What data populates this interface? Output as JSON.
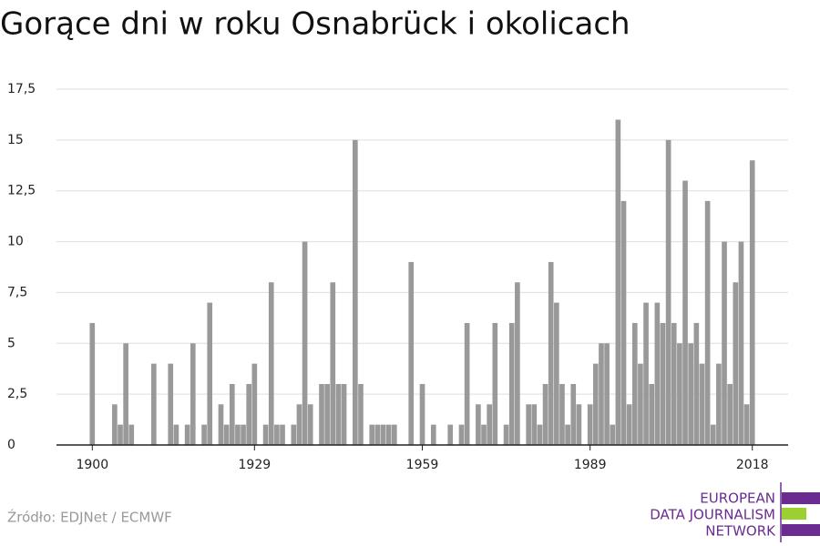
{
  "chart_data": {
    "type": "bar",
    "title": "Gorące dni w roku Osnabrück i okolicach",
    "x": [
      1900,
      1901,
      1902,
      1903,
      1904,
      1905,
      1906,
      1907,
      1908,
      1909,
      1910,
      1911,
      1912,
      1913,
      1914,
      1915,
      1916,
      1917,
      1918,
      1919,
      1920,
      1921,
      1922,
      1923,
      1924,
      1925,
      1926,
      1927,
      1928,
      1929,
      1930,
      1931,
      1932,
      1933,
      1934,
      1935,
      1936,
      1937,
      1938,
      1939,
      1940,
      1941,
      1942,
      1943,
      1944,
      1945,
      1946,
      1947,
      1948,
      1949,
      1950,
      1951,
      1952,
      1953,
      1954,
      1955,
      1956,
      1957,
      1958,
      1959,
      1960,
      1961,
      1962,
      1963,
      1964,
      1965,
      1966,
      1967,
      1968,
      1969,
      1970,
      1971,
      1972,
      1973,
      1974,
      1975,
      1976,
      1977,
      1978,
      1979,
      1980,
      1981,
      1982,
      1983,
      1984,
      1985,
      1986,
      1987,
      1988,
      1989,
      1990,
      1991,
      1992,
      1993,
      1994,
      1995,
      1996,
      1997,
      1998,
      1999,
      2000,
      2001,
      2002,
      2003,
      2004,
      2005,
      2006,
      2007,
      2008,
      2009,
      2010,
      2011,
      2012,
      2013,
      2014,
      2015,
      2016,
      2017,
      2018
    ],
    "values": [
      6,
      0,
      0,
      0,
      2,
      1,
      5,
      1,
      0,
      0,
      0,
      4,
      0,
      0,
      4,
      1,
      0,
      1,
      5,
      0,
      1,
      7,
      0,
      2,
      1,
      3,
      1,
      1,
      3,
      4,
      0,
      1,
      8,
      1,
      1,
      0,
      1,
      2,
      10,
      2,
      0,
      3,
      3,
      8,
      3,
      3,
      0,
      15,
      3,
      0,
      1,
      1,
      1,
      1,
      1,
      0,
      0,
      9,
      0,
      3,
      0,
      1,
      0,
      0,
      1,
      0,
      1,
      6,
      0,
      2,
      1,
      2,
      6,
      0,
      1,
      6,
      8,
      0,
      2,
      2,
      1,
      3,
      9,
      7,
      3,
      1,
      3,
      2,
      0,
      2,
      4,
      5,
      5,
      1,
      16,
      12,
      2,
      6,
      4,
      7,
      3,
      7,
      6,
      15,
      6,
      5,
      13,
      5,
      6,
      4,
      12,
      1,
      4,
      10,
      3,
      8,
      10,
      2,
      14
    ],
    "color": "#999999",
    "xlim": [
      1893.6,
      2024.4
    ],
    "xticks": [
      1900,
      1929,
      1959,
      1989,
      2018
    ],
    "ylim": [
      0,
      17.5
    ],
    "yticks": [
      0,
      {
        "value": 2.5,
        "label": "2,5"
      },
      5,
      {
        "value": 7.5,
        "label": "7,5"
      },
      10,
      {
        "value": 12.5,
        "label": "12,5"
      },
      15,
      {
        "value": 17.5,
        "label": "17,5"
      }
    ],
    "grid": true
  },
  "footer": {
    "source": "Źródło: EDJNet / ECMWF",
    "logo": [
      "EUROPEAN",
      "DATA JOURNALISM",
      "NETWORK"
    ]
  }
}
